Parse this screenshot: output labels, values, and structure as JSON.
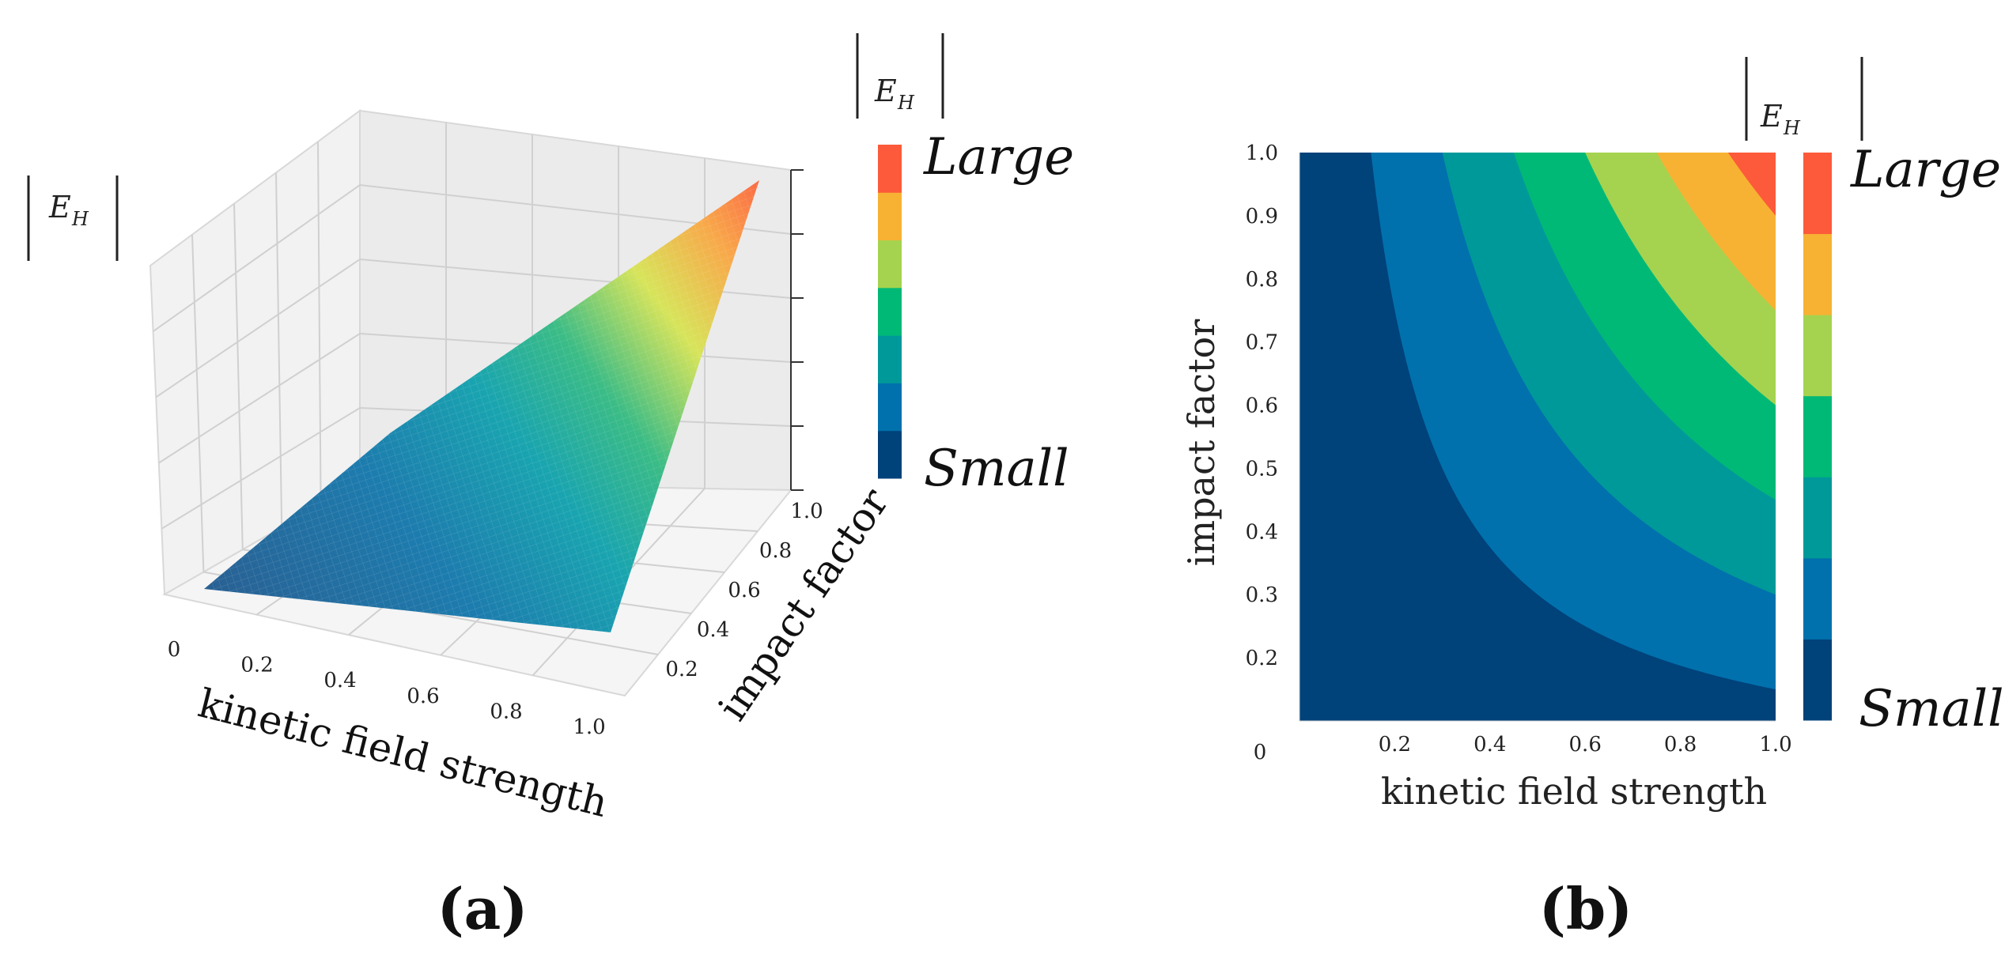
{
  "chart_data": [
    {
      "panel": "a",
      "type": "surface3d",
      "panel_label": "(a)",
      "xlabel": "kinetic field strength",
      "ylabel": "impact factor",
      "zlabel": "E",
      "zlabel_subscript": "H",
      "x_ticks": [
        "0",
        "0.2",
        "0.4",
        "0.6",
        "0.8",
        "1.0"
      ],
      "y_ticks": [
        "0.2",
        "0.4",
        "0.6",
        "0.8",
        "1.0"
      ],
      "xlim": [
        0,
        1
      ],
      "ylim": [
        0,
        1
      ],
      "surface": "z = x * y",
      "colorbar": {
        "label_top": "Large",
        "label_bottom": "Small",
        "title": "E",
        "title_subscript": "H",
        "colors": [
          "#00427a",
          "#0071ad",
          "#009999",
          "#00b977",
          "#a5d34f",
          "#f7b233",
          "#fc5a3a"
        ]
      }
    },
    {
      "panel": "b",
      "type": "contour",
      "panel_label": "(b)",
      "xlabel": "kinetic field strength",
      "ylabel": "impact factor",
      "x_ticks": [
        "0.2",
        "0.4",
        "0.6",
        "0.8",
        "1.0"
      ],
      "y_ticks": [
        "0.2",
        "0.3",
        "0.4",
        "0.5",
        "0.6",
        "0.7",
        "0.8",
        "0.9",
        "1.0"
      ],
      "origin_label": "0",
      "xlim": [
        0,
        1
      ],
      "ylim": [
        0.1,
        1
      ],
      "function": "z = x * y",
      "levels": [
        0,
        0.15,
        0.3,
        0.45,
        0.6,
        0.75,
        0.9,
        1.0
      ],
      "colorbar": {
        "label_top": "Large",
        "label_bottom": "Small",
        "title": "E",
        "title_subscript": "H",
        "colors": [
          "#00427a",
          "#0071ad",
          "#009999",
          "#00b977",
          "#a5d34f",
          "#f7b233",
          "#fc5a3a"
        ]
      }
    }
  ]
}
